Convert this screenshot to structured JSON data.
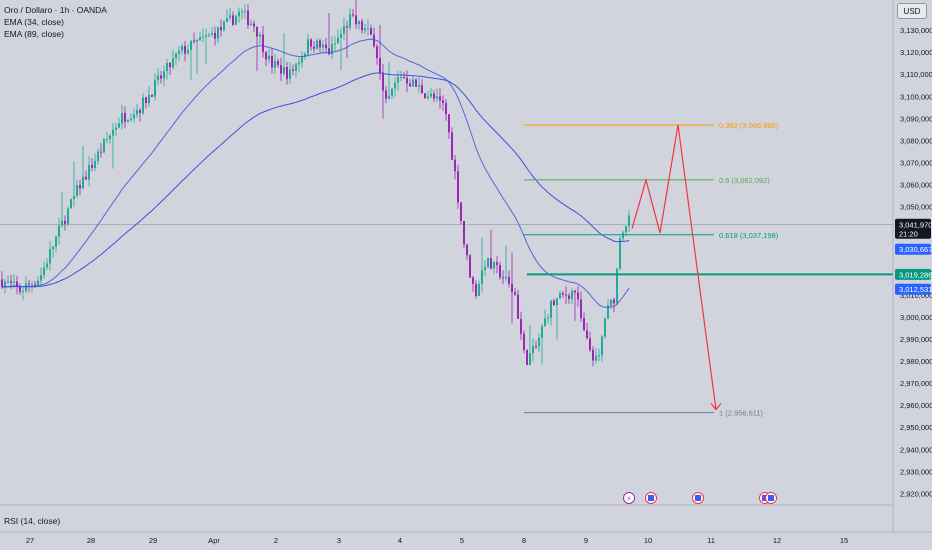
{
  "legend": {
    "symbol": "Oro / Dollaro · 1h · OANDA",
    "ema_fast": "EMA (34, close)",
    "ema_slow": "EMA (89, close)"
  },
  "currency_button": "USD",
  "rsi_label": "RSI (14, close)",
  "colors": {
    "background": "#d1d4dc",
    "bull": "#22ab94",
    "bear": "#9c27b0",
    "ema": "#3f51d9",
    "fib_0382": "#ff9800",
    "fib_05": "#4caf50",
    "fib_0618": "#089981",
    "fib_1": "#787b86",
    "support": "#089981",
    "projection": "#f23645"
  },
  "chart_data": {
    "type": "candlestick",
    "y_axis": {
      "ticks": [
        "3,130,000",
        "3,120,000",
        "3,110,000",
        "3,100,000",
        "3,090,000",
        "3,080,000",
        "3,070,000",
        "3,060,000",
        "3,050,000",
        "3,030,000",
        "3,020,000",
        "3,010,000",
        "3,000,000",
        "2,990,000",
        "2,980,000",
        "2,970,000",
        "2,960,000",
        "2,950,000",
        "2,940,000",
        "2,930,000",
        "2,920,000"
      ],
      "range": [
        2917,
        3140
      ]
    },
    "x_axis": {
      "ticks": [
        "27",
        "28",
        "29",
        "Apr",
        "2",
        "3",
        "4",
        "5",
        "8",
        "9",
        "10",
        "11",
        "12",
        "15"
      ]
    },
    "price_labels": [
      {
        "value": "3,041,970",
        "sub": "21:20",
        "kind": "last"
      },
      {
        "value": "3,030,667",
        "kind": "ema"
      },
      {
        "value": "3,019,286",
        "kind": "support"
      },
      {
        "value": "3,012,531",
        "kind": "ema"
      }
    ],
    "fib_levels": [
      {
        "ratio": "0.382",
        "price": 3086.985,
        "label": "0.382 (3,086,985)"
      },
      {
        "ratio": "0.5",
        "price": 3062.092,
        "label": "0.5 (3,062,092)"
      },
      {
        "ratio": "0.618",
        "price": 3037.198,
        "label": "0.618 (3,037,198)"
      },
      {
        "ratio": "1",
        "price": 2956.611,
        "label": "1 (2,956,611)"
      }
    ],
    "support_level": 3019.286,
    "last_price": 3041.97,
    "projection_path": [
      3040,
      3062,
      3038,
      3087,
      3019,
      2958
    ]
  }
}
